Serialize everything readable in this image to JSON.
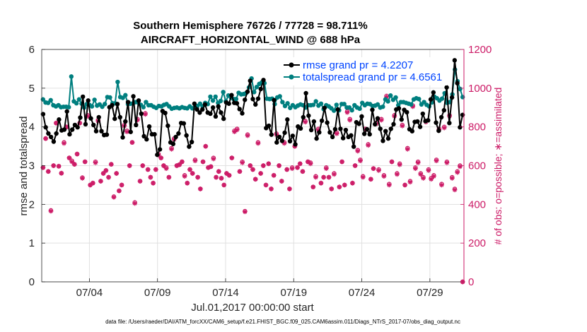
{
  "chart_data": {
    "type": "line",
    "title": "Southern Hemisphere 76726 / 77728 = 98.711%",
    "subtitle": "AIRCRAFT_HORIZONTAL_WIND @ 688 hPa",
    "xlabel": "Jul.01,2017 00:00:00 start",
    "ylabel": "rmse and totalspread",
    "ylabel_right": "# of obs: o=possible; ∗=assimilated",
    "footer": "data file: /Users/raeder/DAI/ATM_forcXX/CAM6_setup/f.e21.FHIST_BGC.f09_025.CAM6assim.011/Diags_NTrS_2017-07/obs_diag_output.nc",
    "x_range": [
      0.5,
      31.5
    ],
    "ylim": [
      0,
      6
    ],
    "ylim_right": [
      0,
      1200
    ],
    "y_ticks": [
      "0",
      "1",
      "2",
      "3",
      "4",
      "5",
      "6"
    ],
    "y_ticks_right": [
      "0",
      "200",
      "400",
      "600",
      "800",
      "1000",
      "1200"
    ],
    "x_ticks": [
      {
        "x": 4,
        "label": "07/04"
      },
      {
        "x": 9,
        "label": "07/09"
      },
      {
        "x": 14,
        "label": "07/14"
      },
      {
        "x": 19,
        "label": "07/19"
      },
      {
        "x": 24,
        "label": "07/24"
      },
      {
        "x": 29,
        "label": "07/29"
      }
    ],
    "grid": true,
    "legend_position": "top-right",
    "colors": {
      "rmse": "#000000",
      "spread": "#007f7f",
      "obs": "#cc1a66",
      "legend_text": "#0044ff"
    },
    "series": [
      {
        "name": "rmse grand pr = 4.2207",
        "axis": "left",
        "values": [
          4.33,
          3.99,
          3.83,
          3.74,
          3.62,
          3.83,
          4.19,
          3.91,
          3.93,
          4.4,
          3.81,
          3.93,
          4.05,
          3.99,
          4.24,
          4.78,
          4.07,
          4.68,
          4.22,
          4.05,
          3.89,
          4.25,
          3.89,
          3.79,
          3.8,
          4.51,
          4.56,
          4.21,
          4.59,
          4.25,
          3.73,
          4.14,
          4.64,
          3.87,
          4.79,
          4.05,
          4.68,
          4.34,
          3.76,
          3.68,
          4.01,
          3.81,
          3.81,
          3.28,
          3.42,
          4.41,
          4.36,
          4.03,
          3.6,
          3.56,
          3.74,
          3.83,
          4.1,
          4.09,
          3.78,
          3.49,
          3.61,
          4.6,
          4.45,
          4.37,
          4.45,
          4.58,
          4.37,
          4.34,
          4.5,
          4.27,
          4.53,
          4.37,
          4.21,
          4.63,
          4.6,
          4.82,
          4.62,
          4.61,
          4.46,
          4.35,
          4.7,
          4.91,
          5.19,
          4.72,
          4.58,
          4.73,
          4.98,
          5.21,
          3.97,
          4.03,
          3.8,
          4.69,
          3.6,
          3.74,
          3.64,
          3.85,
          4.19,
          3.63,
          3.77,
          3.55,
          4.01,
          3.96,
          4.25,
          4.87,
          4.29,
          3.92,
          4.14,
          3.7,
          3.86,
          4.16,
          4.49,
          4.11,
          3.86,
          3.74,
          3.94,
          4.45,
          3.95,
          3.71,
          3.92,
          3.74,
          3.78,
          3.49,
          4.12,
          4.08,
          4.27,
          3.82,
          3.94,
          3.81,
          4.44,
          4.07,
          4.22,
          3.95,
          3.64,
          3.89,
          3.7,
          3.95,
          4.07,
          4.45,
          4.48,
          4.19,
          4.44,
          4.38,
          3.94,
          3.89,
          4.13,
          4.14,
          4.0,
          4.34,
          4.15,
          4.17,
          4.71,
          4.89,
          4.11,
          3.9,
          4.25,
          4.43,
          5.02,
          4.1,
          4.76,
          5.72,
          5.13,
          3.99,
          4.31
        ]
      },
      {
        "name": "totalspread grand pr = 4.6561",
        "axis": "left",
        "values": [
          4.71,
          4.63,
          4.62,
          4.69,
          4.56,
          4.53,
          4.56,
          4.51,
          4.52,
          4.52,
          4.51,
          5.3,
          4.66,
          4.61,
          4.71,
          4.6,
          4.5,
          4.59,
          4.57,
          4.53,
          4.7,
          4.55,
          4.58,
          4.52,
          4.59,
          4.77,
          4.76,
          4.61,
          4.61,
          5.16,
          4.77,
          4.75,
          4.82,
          4.59,
          4.6,
          4.61,
          4.64,
          4.63,
          4.57,
          4.51,
          4.64,
          4.56,
          4.56,
          4.52,
          4.49,
          4.54,
          4.53,
          4.57,
          4.59,
          4.53,
          4.47,
          4.49,
          4.5,
          4.48,
          4.51,
          4.49,
          4.48,
          4.53,
          4.48,
          4.52,
          4.54,
          4.6,
          4.53,
          4.62,
          4.59,
          4.78,
          4.68,
          4.78,
          4.62,
          4.67,
          4.9,
          4.66,
          4.81,
          4.76,
          4.72,
          4.72,
          4.88,
          4.84,
          4.85,
          4.88,
          5.02,
          5.25,
          4.9,
          5.03,
          5.11,
          5.15,
          5.13,
          4.73,
          4.72,
          4.73,
          4.59,
          4.76,
          4.79,
          4.64,
          4.54,
          4.61,
          4.49,
          4.56,
          4.51,
          4.55,
          4.58,
          4.56,
          4.5,
          4.56,
          4.56,
          4.57,
          4.66,
          4.55,
          4.6,
          4.46,
          4.56,
          4.53,
          4.48,
          4.42,
          4.57,
          4.43,
          4.59,
          4.59,
          4.5,
          4.5,
          4.43,
          4.56,
          4.5,
          4.47,
          4.62,
          4.56,
          4.6,
          4.59,
          4.54,
          4.55,
          4.58,
          4.5,
          4.52,
          4.71,
          4.66,
          4.81,
          4.7,
          4.76,
          4.56,
          4.64,
          4.64,
          4.62,
          4.6,
          4.58,
          4.71,
          4.74,
          4.72,
          4.58,
          4.64,
          4.57,
          4.53,
          4.63,
          4.78,
          4.74,
          4.68,
          4.73,
          4.87,
          4.62,
          4.64,
          4.84,
          5.48,
          5.18,
          4.98,
          4.77
        ]
      },
      {
        "name": "obs possible",
        "axis": "right",
        "marker": "circle",
        "values": [
          590,
          740,
          570,
          369,
          600,
          820,
          597,
          561,
          720,
          800,
          640,
          625,
          607,
          660,
          820,
          538,
          620,
          860,
          500,
          510,
          620,
          835,
          520,
          560,
          575,
          540,
          607,
          440,
          560,
          470,
          500,
          810,
          780,
          600,
          720,
          410,
          840,
          520,
          600,
          870,
          580,
          540,
          510,
          580,
          660,
          640,
          600,
          590,
          540,
          690,
          740,
          600,
          605,
          620,
          550,
          510,
          580,
          560,
          630,
          540,
          480,
          620,
          700,
          590,
          595,
          640,
          540,
          570,
          535,
          500,
          560,
          550,
          640,
          780,
          790,
          570,
          620,
          365,
          760,
          600,
          580,
          530,
          720,
          560,
          600,
          500,
          610,
          480,
          550,
          765,
          600,
          520,
          720,
          580,
          480,
          590,
          700,
          590,
          610,
          570,
          830,
          620,
          615,
          490,
          545,
          790,
          510,
          540,
          590,
          540,
          480,
          560,
          770,
          490,
          620,
          500,
          880,
          840,
          510,
          600,
          680,
          630,
          545,
          790,
          710,
          530,
          585,
          820,
          580,
          840,
          550,
          960,
          505,
          620,
          860,
          560,
          610,
          810,
          500,
          690,
          520,
          910,
          590,
          620,
          560,
          540,
          830,
          580,
          535,
          550,
          630,
          790,
          505,
          800,
          620,
          860,
          540,
          480,
          570,
          600,
          0
        ]
      },
      {
        "name": "obs assimilated",
        "axis": "right",
        "marker": "asterisk",
        "values": [
          590,
          740,
          570,
          365,
          600,
          820,
          597,
          561,
          715,
          800,
          640,
          620,
          607,
          660,
          820,
          535,
          620,
          855,
          500,
          510,
          615,
          830,
          520,
          560,
          575,
          540,
          607,
          437,
          560,
          470,
          500,
          805,
          775,
          600,
          720,
          405,
          835,
          520,
          600,
          865,
          580,
          540,
          510,
          580,
          655,
          640,
          600,
          585,
          540,
          685,
          735,
          600,
          605,
          620,
          545,
          510,
          580,
          560,
          625,
          540,
          480,
          620,
          700,
          590,
          595,
          635,
          540,
          570,
          535,
          500,
          560,
          550,
          640,
          775,
          785,
          570,
          615,
          362,
          755,
          600,
          580,
          530,
          715,
          560,
          600,
          500,
          610,
          480,
          550,
          760,
          600,
          520,
          715,
          580,
          480,
          585,
          700,
          590,
          610,
          570,
          825,
          620,
          610,
          490,
          540,
          785,
          510,
          540,
          585,
          540,
          480,
          555,
          765,
          490,
          620,
          500,
          875,
          835,
          510,
          600,
          675,
          625,
          540,
          785,
          705,
          530,
          585,
          815,
          575,
          835,
          545,
          955,
          500,
          620,
          855,
          555,
          605,
          805,
          500,
          685,
          515,
          905,
          585,
          615,
          555,
          535,
          825,
          575,
          530,
          545,
          625,
          785,
          500,
          795,
          615,
          855,
          535,
          475,
          565,
          595,
          0
        ]
      }
    ]
  }
}
